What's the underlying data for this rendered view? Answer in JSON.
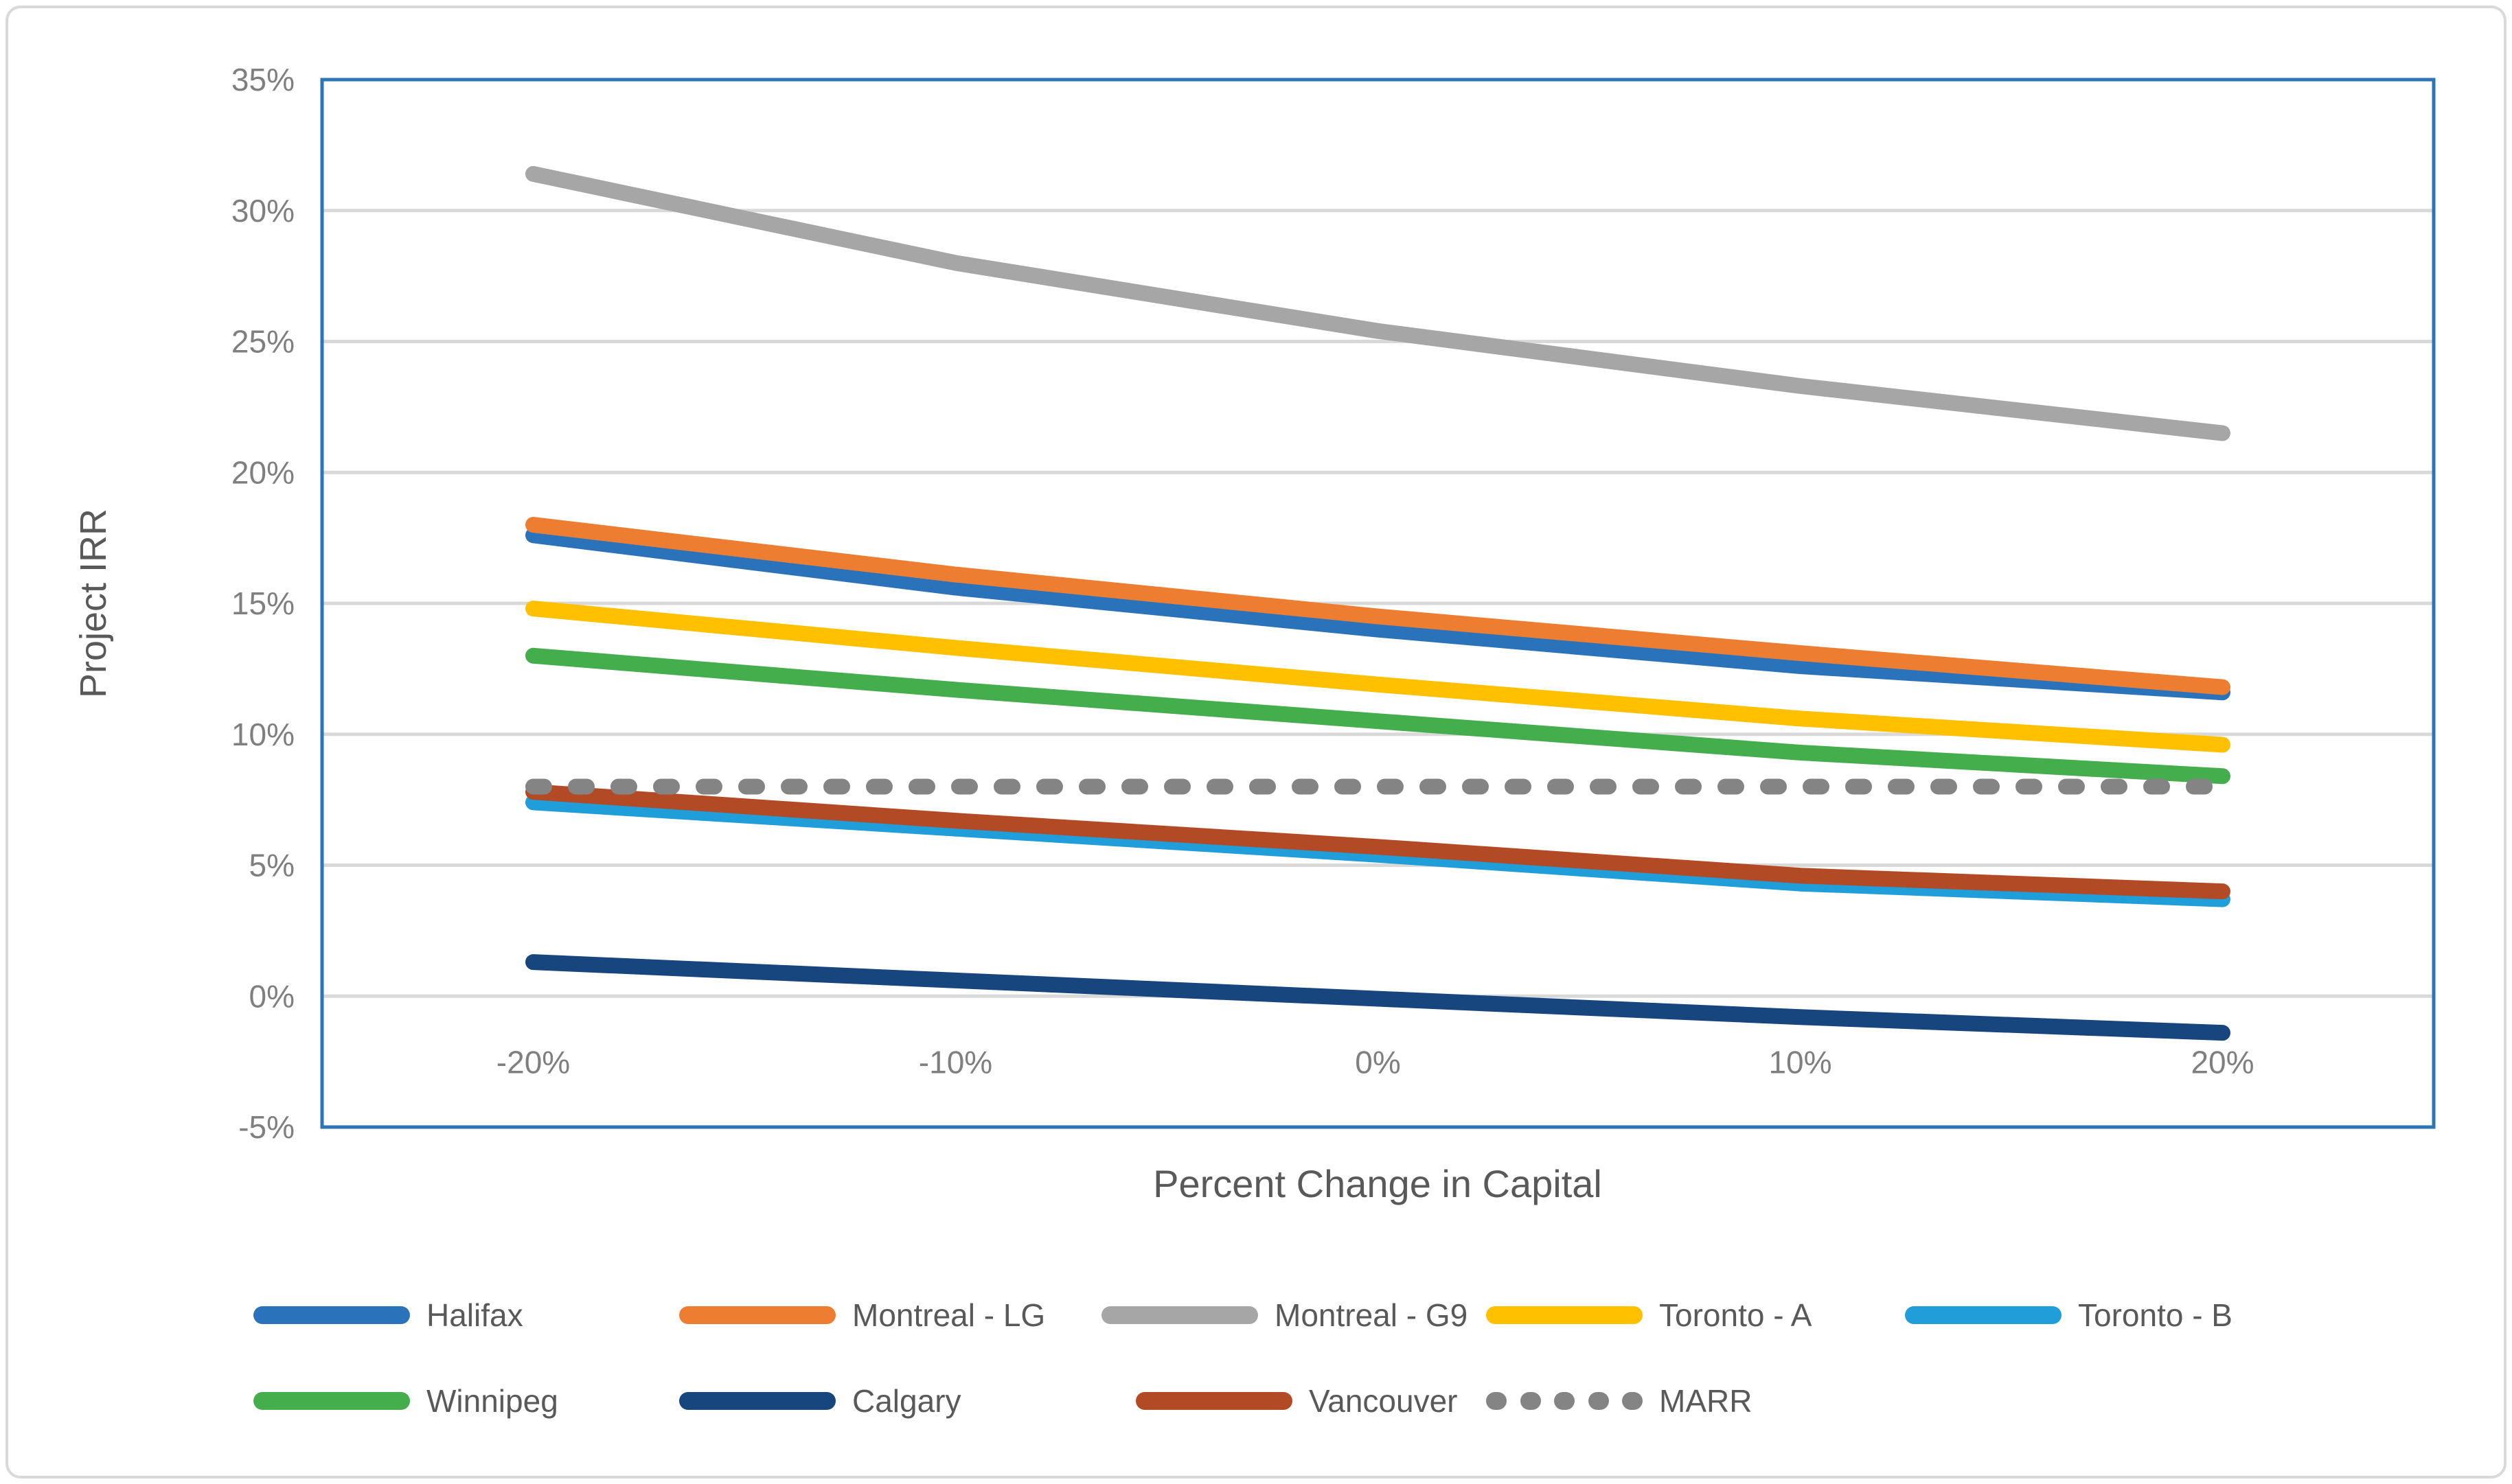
{
  "chart_data": {
    "type": "line",
    "title": "",
    "xlabel": "Percent Change in Capital",
    "ylabel": "Project IRR",
    "x_categories": [
      "-20%",
      "-10%",
      "0%",
      "10%",
      "20%"
    ],
    "x_values": [
      -20,
      -10,
      0,
      10,
      20
    ],
    "y_ticks": [
      "35%",
      "30%",
      "25%",
      "20%",
      "15%",
      "10%",
      "5%",
      "0%",
      "-5%"
    ],
    "y_tick_values": [
      35,
      30,
      25,
      20,
      15,
      10,
      5,
      0,
      -5
    ],
    "ylim": [
      -5,
      35
    ],
    "grid": "horizontal",
    "legend_position": "bottom",
    "series": [
      {
        "name": "Halifax",
        "color": "#2a73bb",
        "dash": false,
        "values": [
          17.6,
          15.6,
          14.0,
          12.6,
          11.6
        ]
      },
      {
        "name": "Montreal - LG",
        "color": "#ed7d31",
        "dash": false,
        "values": [
          18.0,
          16.1,
          14.5,
          13.1,
          11.8
        ]
      },
      {
        "name": "Montreal - G9",
        "color": "#a6a6a6",
        "dash": false,
        "values": [
          31.4,
          28.0,
          25.4,
          23.3,
          21.5
        ]
      },
      {
        "name": "Toronto - A",
        "color": "#ffc000",
        "dash": false,
        "values": [
          14.8,
          13.3,
          11.9,
          10.6,
          9.6
        ]
      },
      {
        "name": "Toronto - B",
        "color": "#1f9ed9",
        "dash": false,
        "values": [
          7.4,
          6.4,
          5.4,
          4.3,
          3.7
        ]
      },
      {
        "name": "Winnipeg",
        "color": "#44ad4c",
        "dash": false,
        "values": [
          13.0,
          11.7,
          10.5,
          9.3,
          8.4
        ]
      },
      {
        "name": "Calgary",
        "color": "#17457e",
        "dash": false,
        "values": [
          1.3,
          0.6,
          -0.1,
          -0.8,
          -1.4
        ]
      },
      {
        "name": "Vancouver",
        "color": "#b34a26",
        "dash": false,
        "values": [
          7.8,
          6.7,
          5.7,
          4.6,
          4.0
        ]
      },
      {
        "name": "MARR",
        "color": "#848484",
        "dash": true,
        "values": [
          8.0,
          8.0,
          8.0,
          8.0,
          8.0
        ]
      }
    ]
  },
  "colors": {
    "plot_border": "#2e75b6",
    "gridline": "#d9d9d9",
    "tick_label": "#7f7f7f",
    "axis_title": "#595959",
    "figure_border": "#d9d9d9",
    "background": "#ffffff"
  }
}
